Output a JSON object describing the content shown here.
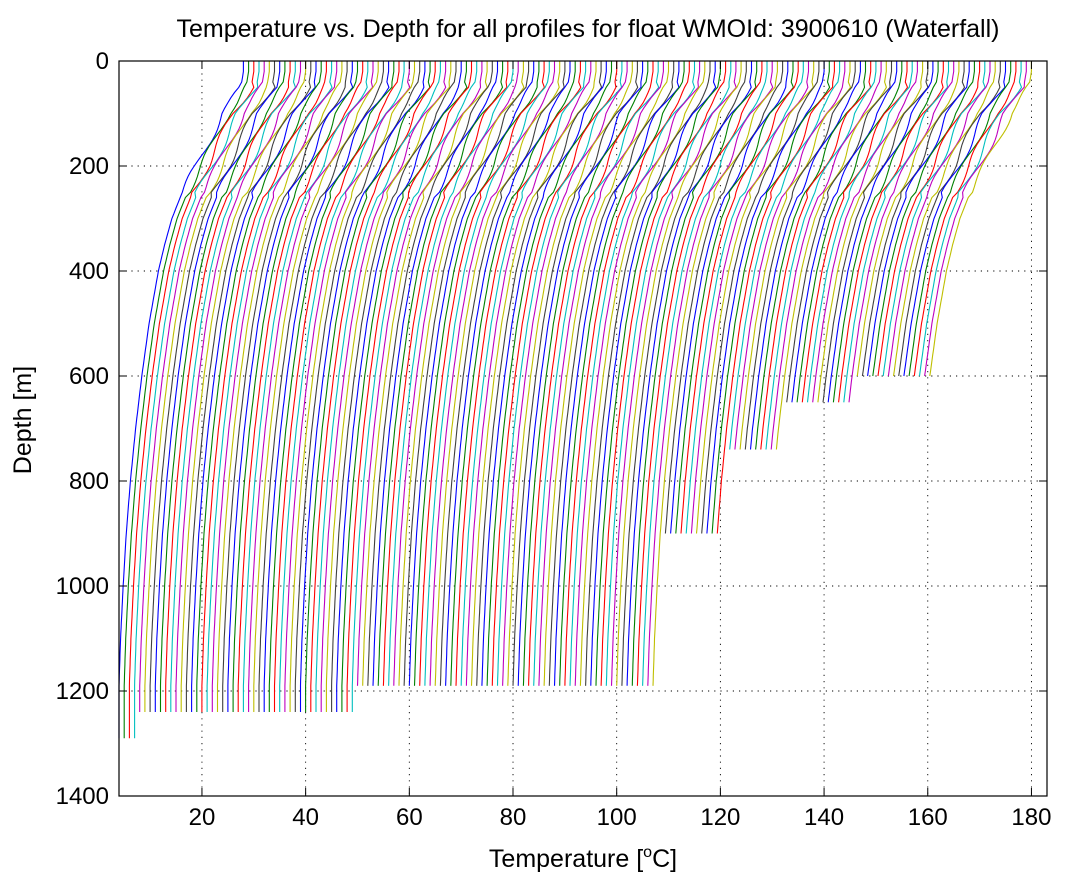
{
  "chart_data": {
    "type": "line",
    "title": "Temperature vs. Depth for all profiles for float WMOId: 3900610 (Waterfall)",
    "xlabel_main": "Temperature [",
    "xlabel_sup": "o",
    "xlabel_end": "C]",
    "ylabel": "Depth [m]",
    "xlim": [
      4,
      183
    ],
    "ylim": [
      0,
      1400
    ],
    "y_reversed": true,
    "grid": true,
    "x_ticks": [
      20,
      40,
      60,
      80,
      100,
      120,
      140,
      160,
      180
    ],
    "y_ticks": [
      0,
      200,
      400,
      600,
      800,
      1000,
      1200,
      1400
    ],
    "waterfall_offset": 1,
    "profile_count": 153,
    "series_colors": [
      "#0000ff",
      "#008000",
      "#ff0000",
      "#00bfbf",
      "#bf00bf",
      "#bfbf00",
      "#404040"
    ],
    "profile_template": {
      "depth": [
        0,
        20,
        50,
        80,
        100,
        150,
        200,
        250,
        300,
        350,
        400,
        500,
        600,
        700,
        800,
        900,
        1000,
        1100,
        1190
      ],
      "temperature_anomaly": [
        24.0,
        24.0,
        23.5,
        21.5,
        20.0,
        17.5,
        15.0,
        12.2,
        10.2,
        8.8,
        7.6,
        5.8,
        4.4,
        3.2,
        2.2,
        1.4,
        0.8,
        0.3,
        0.0
      ]
    },
    "profile_max_depths_by_group": [
      {
        "from_profile": 1,
        "to_profile": 4,
        "max_depth": 1290
      },
      {
        "from_profile": 5,
        "to_profile": 46,
        "max_depth": 1240
      },
      {
        "from_profile": 47,
        "to_profile": 104,
        "max_depth": 1190
      },
      {
        "from_profile": 105,
        "to_profile": 115,
        "max_depth": 900
      },
      {
        "from_profile": 116,
        "to_profile": 125,
        "max_depth": 740
      },
      {
        "from_profile": 126,
        "to_profile": 138,
        "max_depth": 650
      },
      {
        "from_profile": 139,
        "to_profile": 153,
        "max_depth": 600
      }
    ]
  }
}
